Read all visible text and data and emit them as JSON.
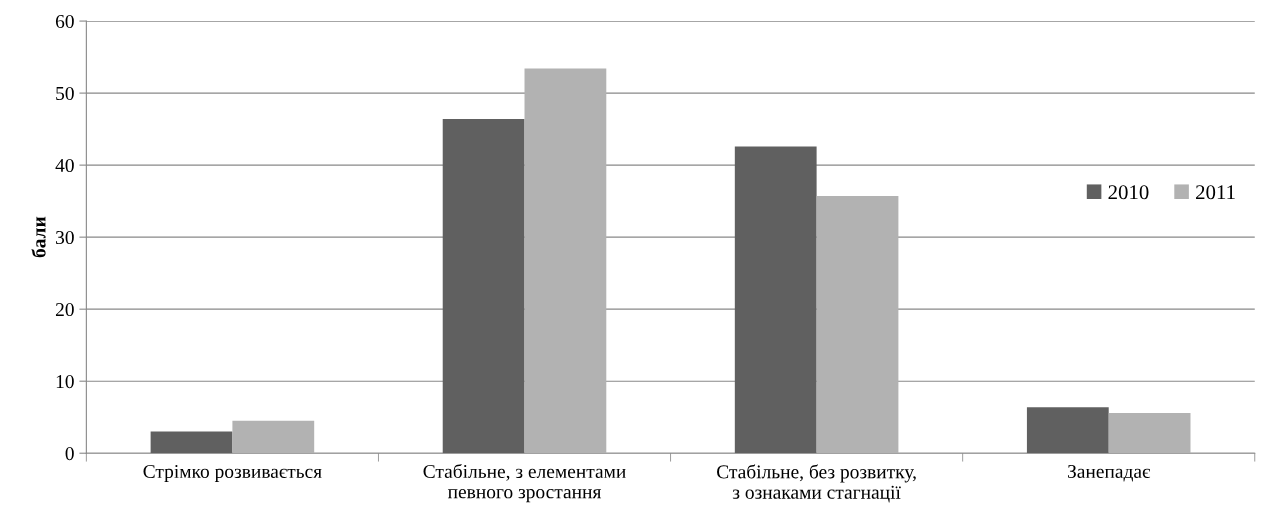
{
  "chart_data": {
    "type": "bar",
    "ylabel": "бали",
    "categories": [
      "Стрімко розвивається",
      "Стабільне, з елементами\nпевного зростання",
      "Стабільне, без розвитку,\nз ознаками стагнації",
      "Занепадає"
    ],
    "series": [
      {
        "name": "2010",
        "color": "#606060",
        "values": [
          3.0,
          46.4,
          42.6,
          6.4
        ]
      },
      {
        "name": "2011",
        "color": "#b2b2b2",
        "values": [
          4.5,
          53.4,
          35.7,
          5.6
        ]
      }
    ],
    "ylim": [
      0,
      60
    ],
    "yticks": [
      0,
      10,
      20,
      30,
      40,
      50,
      60
    ],
    "grid": "y",
    "legend": "right"
  }
}
